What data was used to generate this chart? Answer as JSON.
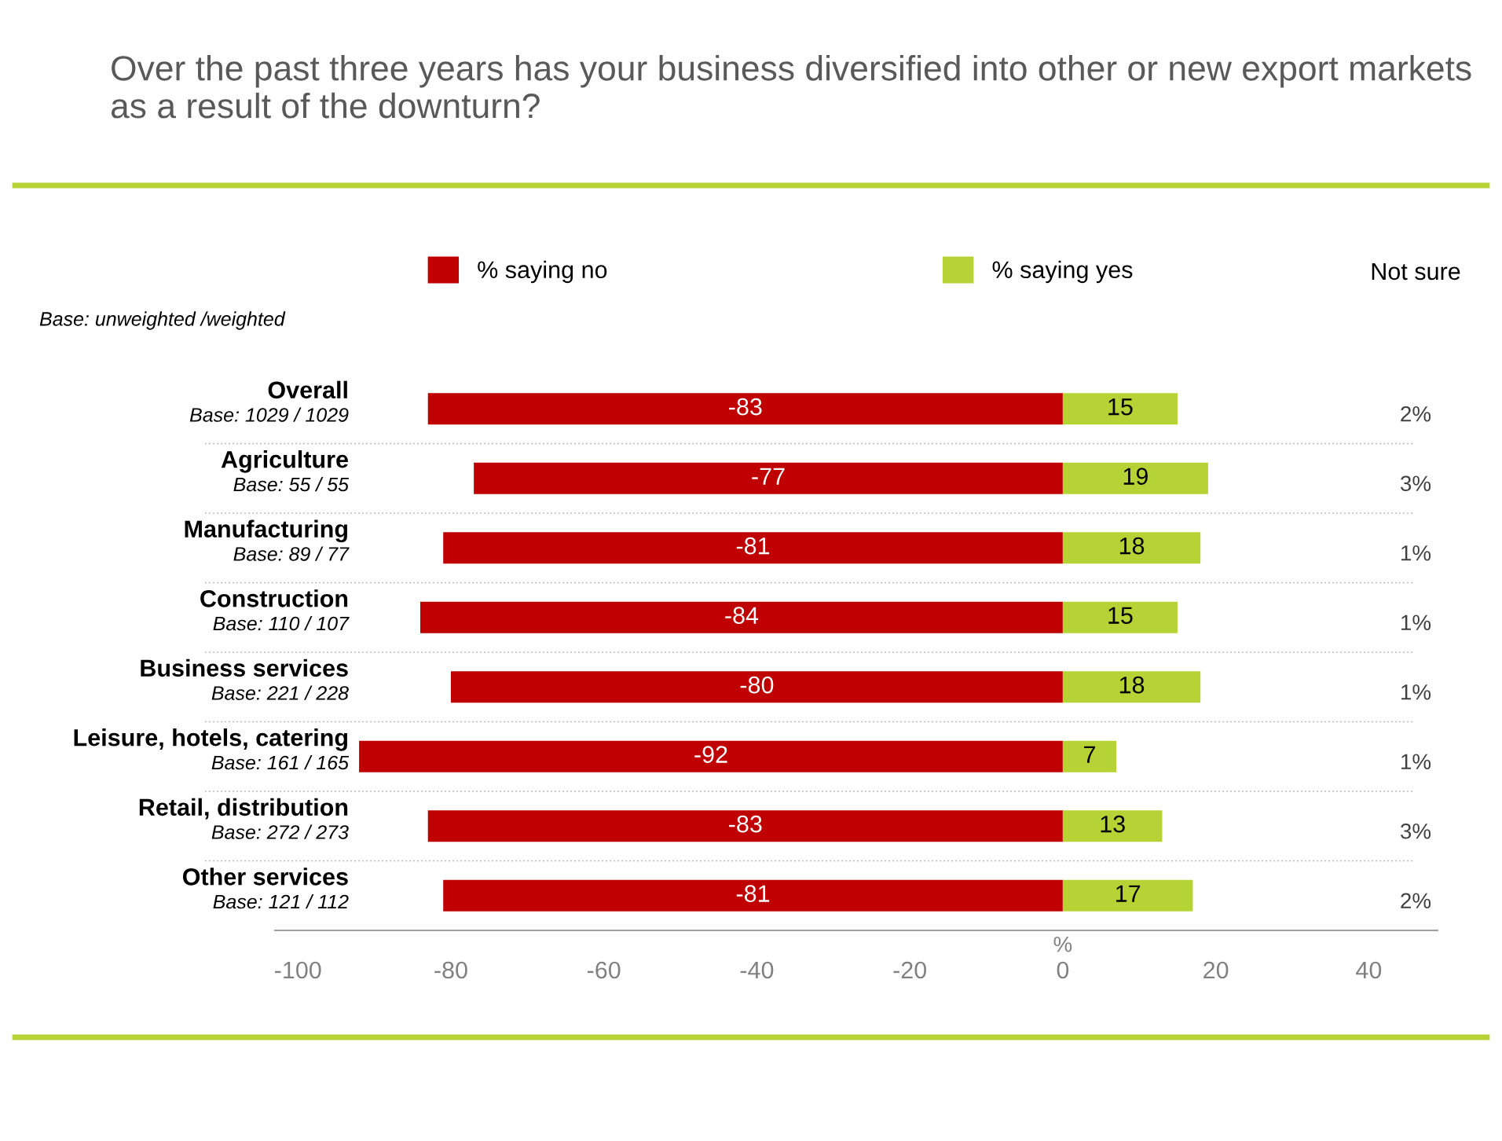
{
  "chart_data": {
    "type": "bar",
    "orientation": "horizontal",
    "title": "Over the past three years has your business diversified into other or new export markets as a result of the downturn?",
    "categories": [
      "Overall\nBase: 1029 / 1029",
      "Agriculture\nBase: 55 / 55",
      "Manufacturing\nBase: 89 / 77",
      "Construction\nBase: 110 / 107",
      "Business services\nBase: 221 / 228",
      "Leisure, hotels, catering\nBase: 161 / 165",
      "Retail, distribution\nBase: 272 / 273",
      "Other services\nBase: 121 / 112"
    ],
    "series": [
      {
        "name": "% saying no",
        "color": "#c00000",
        "values": [
          -83,
          -77,
          -81,
          -84,
          -80,
          -92,
          -83,
          -81
        ]
      },
      {
        "name": "% saying yes",
        "color": "#b5d334",
        "values": [
          15,
          19,
          18,
          15,
          18,
          7,
          13,
          17
        ]
      }
    ],
    "data_labels": true,
    "stacked": true,
    "xlabel": "%",
    "xlim": [
      -103,
      49
    ],
    "xticks": [
      -100,
      -80,
      -60,
      -40,
      -20,
      0,
      20,
      40
    ],
    "legend": "top",
    "grid": false,
    "annotations": [
      "Base: unweighted /weighted",
      "Not sure",
      "2%",
      "3%",
      "1%",
      "1%",
      "1%",
      "1%",
      "3%",
      "2%"
    ]
  }
}
